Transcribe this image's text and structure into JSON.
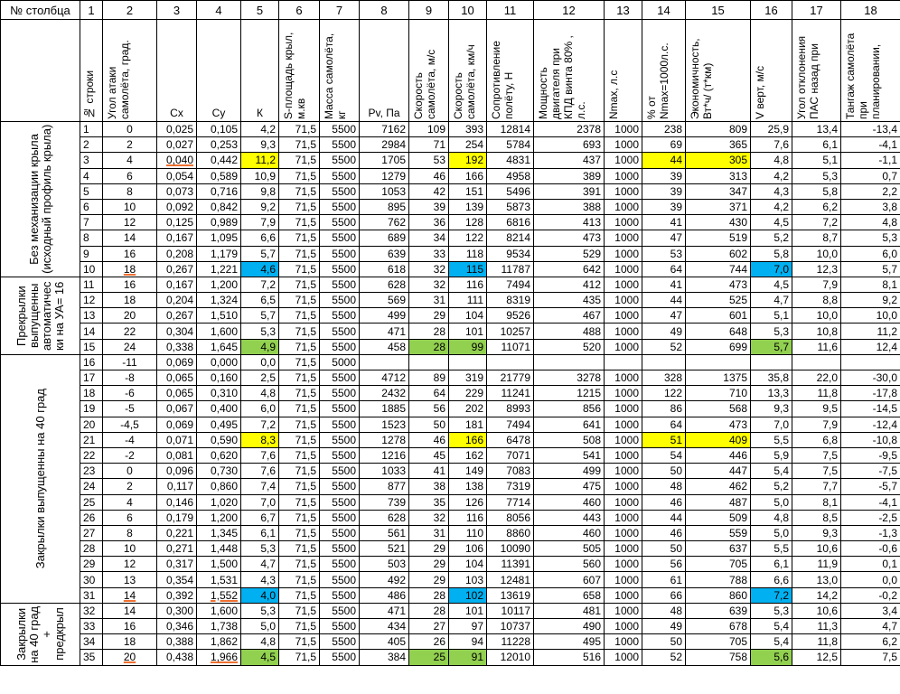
{
  "table": {
    "corner": "№ столбца",
    "column_numbers": [
      1,
      2,
      3,
      4,
      5,
      6,
      7,
      8,
      9,
      10,
      11,
      12,
      13,
      14,
      15,
      16,
      17,
      18
    ],
    "headers": [
      "№ строки",
      "Угол атаки самолёта, град.",
      "Cx",
      "Cy",
      "К",
      "S-площадь крыл, м.кв",
      "Масса самолёта, кг",
      "Pv, Па",
      "Скорость самолёта, м/с",
      "Скорость самолёта, км/ч",
      "Сопротивление полёту, Н",
      "Мощность двигателя при КПД винта 80% , л.с.",
      "Nmax, л.с",
      "% от Nmax=1000л.с.",
      "Экономичность, Вт*ч/ (т*км)",
      "V верт, м/с",
      "Угол отклонения ПАС назад при",
      "Тангаж самолёта при планировании,"
    ],
    "groups": [
      {
        "label": "Без механизации крыла (исходный профиль крыла)",
        "rows": [
          [
            "1",
            "0",
            "0,025",
            "0,105",
            "4,2",
            "71,5",
            "5500",
            "7162",
            "109",
            "393",
            "12814",
            "2378",
            "1000",
            "238",
            "809",
            "25,9",
            "13,4",
            "-13,4"
          ],
          [
            "2",
            "2",
            "0,027",
            "0,253",
            "9,3",
            "71,5",
            "5500",
            "2984",
            "71",
            "254",
            "5784",
            "693",
            "1000",
            "69",
            "365",
            "7,6",
            "6,1",
            "-4,1"
          ],
          [
            "3",
            "4",
            "0,040",
            "0,442",
            "11,2",
            "71,5",
            "5500",
            "1705",
            "53",
            "192",
            "4831",
            "437",
            "1000",
            "44",
            "305",
            "4,8",
            "5,1",
            "-1,1"
          ],
          [
            "4",
            "6",
            "0,054",
            "0,589",
            "10,9",
            "71,5",
            "5500",
            "1279",
            "46",
            "166",
            "4958",
            "389",
            "1000",
            "39",
            "313",
            "4,2",
            "5,3",
            "0,7"
          ],
          [
            "5",
            "8",
            "0,073",
            "0,716",
            "9,8",
            "71,5",
            "5500",
            "1053",
            "42",
            "151",
            "5496",
            "391",
            "1000",
            "39",
            "347",
            "4,3",
            "5,8",
            "2,2"
          ],
          [
            "6",
            "10",
            "0,092",
            "0,842",
            "9,2",
            "71,5",
            "5500",
            "895",
            "39",
            "139",
            "5873",
            "388",
            "1000",
            "39",
            "371",
            "4,2",
            "6,2",
            "3,8"
          ],
          [
            "7",
            "12",
            "0,125",
            "0,989",
            "7,9",
            "71,5",
            "5500",
            "762",
            "36",
            "128",
            "6816",
            "413",
            "1000",
            "41",
            "430",
            "4,5",
            "7,2",
            "4,8"
          ],
          [
            "8",
            "14",
            "0,167",
            "1,095",
            "6,6",
            "71,5",
            "5500",
            "689",
            "34",
            "122",
            "8214",
            "473",
            "1000",
            "47",
            "519",
            "5,2",
            "8,7",
            "5,3"
          ],
          [
            "9",
            "16",
            "0,208",
            "1,179",
            "5,7",
            "71,5",
            "5500",
            "639",
            "33",
            "118",
            "9534",
            "529",
            "1000",
            "53",
            "602",
            "5,8",
            "10,0",
            "6,0"
          ],
          [
            "10",
            "18",
            "0,267",
            "1,221",
            "4,6",
            "71,5",
            "5500",
            "618",
            "32",
            "115",
            "11787",
            "642",
            "1000",
            "64",
            "744",
            "7,0",
            "12,3",
            "5,7"
          ]
        ]
      },
      {
        "label": "Прекрылки выпущенны автоматичес ки на УА= 16",
        "rows": [
          [
            "11",
            "16",
            "0,167",
            "1,200",
            "7,2",
            "71,5",
            "5500",
            "628",
            "32",
            "116",
            "7494",
            "412",
            "1000",
            "41",
            "473",
            "4,5",
            "7,9",
            "8,1"
          ],
          [
            "12",
            "18",
            "0,204",
            "1,324",
            "6,5",
            "71,5",
            "5500",
            "569",
            "31",
            "111",
            "8319",
            "435",
            "1000",
            "44",
            "525",
            "4,7",
            "8,8",
            "9,2"
          ],
          [
            "13",
            "20",
            "0,267",
            "1,510",
            "5,7",
            "71,5",
            "5500",
            "499",
            "29",
            "104",
            "9526",
            "467",
            "1000",
            "47",
            "601",
            "5,1",
            "10,0",
            "10,0"
          ],
          [
            "14",
            "22",
            "0,304",
            "1,600",
            "5,3",
            "71,5",
            "5500",
            "471",
            "28",
            "101",
            "10257",
            "488",
            "1000",
            "49",
            "648",
            "5,3",
            "10,8",
            "11,2"
          ],
          [
            "15",
            "24",
            "0,338",
            "1,645",
            "4,9",
            "71,5",
            "5500",
            "458",
            "28",
            "99",
            "11071",
            "520",
            "1000",
            "52",
            "699",
            "5,7",
            "11,6",
            "12,4"
          ]
        ]
      },
      {
        "label": "Закрылки выпущенны на 40 град",
        "rows": [
          [
            "16",
            "-11",
            "0,069",
            "0,000",
            "0,0",
            "71,5",
            "5000",
            null,
            null,
            null,
            null,
            null,
            null,
            null,
            null,
            null,
            null,
            null
          ],
          [
            "17",
            "-8",
            "0,065",
            "0,160",
            "2,5",
            "71,5",
            "5500",
            "4712",
            "89",
            "319",
            "21779",
            "3278",
            "1000",
            "328",
            "1375",
            "35,8",
            "22,0",
            "-30,0"
          ],
          [
            "18",
            "-6",
            "0,065",
            "0,310",
            "4,8",
            "71,5",
            "5500",
            "2432",
            "64",
            "229",
            "11241",
            "1215",
            "1000",
            "122",
            "710",
            "13,3",
            "11,8",
            "-17,8"
          ],
          [
            "19",
            "-5",
            "0,067",
            "0,400",
            "6,0",
            "71,5",
            "5500",
            "1885",
            "56",
            "202",
            "8993",
            "856",
            "1000",
            "86",
            "568",
            "9,3",
            "9,5",
            "-14,5"
          ],
          [
            "20",
            "-4,5",
            "0,069",
            "0,495",
            "7,2",
            "71,5",
            "5500",
            "1523",
            "50",
            "181",
            "7494",
            "641",
            "1000",
            "64",
            "473",
            "7,0",
            "7,9",
            "-12,4"
          ],
          [
            "21",
            "-4",
            "0,071",
            "0,590",
            "8,3",
            "71,5",
            "5500",
            "1278",
            "46",
            "166",
            "6478",
            "508",
            "1000",
            "51",
            "409",
            "5,5",
            "6,8",
            "-10,8"
          ],
          [
            "22",
            "-2",
            "0,081",
            "0,620",
            "7,6",
            "71,5",
            "5500",
            "1216",
            "45",
            "162",
            "7071",
            "541",
            "1000",
            "54",
            "446",
            "5,9",
            "7,5",
            "-9,5"
          ],
          [
            "23",
            "0",
            "0,096",
            "0,730",
            "7,6",
            "71,5",
            "5500",
            "1033",
            "41",
            "149",
            "7083",
            "499",
            "1000",
            "50",
            "447",
            "5,4",
            "7,5",
            "-7,5"
          ],
          [
            "24",
            "2",
            "0,117",
            "0,860",
            "7,4",
            "71,5",
            "5500",
            "877",
            "38",
            "138",
            "7319",
            "475",
            "1000",
            "48",
            "462",
            "5,2",
            "7,7",
            "-5,7"
          ],
          [
            "25",
            "4",
            "0,146",
            "1,020",
            "7,0",
            "71,5",
            "5500",
            "739",
            "35",
            "126",
            "7714",
            "460",
            "1000",
            "46",
            "487",
            "5,0",
            "8,1",
            "-4,1"
          ],
          [
            "26",
            "6",
            "0,179",
            "1,200",
            "6,7",
            "71,5",
            "5500",
            "628",
            "32",
            "116",
            "8056",
            "443",
            "1000",
            "44",
            "509",
            "4,8",
            "8,5",
            "-2,5"
          ],
          [
            "27",
            "8",
            "0,221",
            "1,345",
            "6,1",
            "71,5",
            "5500",
            "561",
            "31",
            "110",
            "8860",
            "460",
            "1000",
            "46",
            "559",
            "5,0",
            "9,3",
            "-1,3"
          ],
          [
            "28",
            "10",
            "0,271",
            "1,448",
            "5,3",
            "71,5",
            "5500",
            "521",
            "29",
            "106",
            "10090",
            "505",
            "1000",
            "50",
            "637",
            "5,5",
            "10,6",
            "-0,6"
          ],
          [
            "29",
            "12",
            "0,317",
            "1,500",
            "4,7",
            "71,5",
            "5500",
            "503",
            "29",
            "104",
            "11391",
            "560",
            "1000",
            "56",
            "705",
            "6,1",
            "11,9",
            "0,1"
          ],
          [
            "30",
            "13",
            "0,354",
            "1,531",
            "4,3",
            "71,5",
            "5500",
            "492",
            "29",
            "103",
            "12481",
            "607",
            "1000",
            "61",
            "788",
            "6,6",
            "13,0",
            "0,0"
          ],
          [
            "31",
            "14",
            "0,392",
            "1,552",
            "4,0",
            "71,5",
            "5500",
            "486",
            "28",
            "102",
            "13619",
            "658",
            "1000",
            "66",
            "860",
            "7,2",
            "14,2",
            "-0,2"
          ]
        ]
      },
      {
        "label": "Закрылки на 40 град + предкрыл",
        "rows": [
          [
            "32",
            "14",
            "0,300",
            "1,600",
            "5,3",
            "71,5",
            "5500",
            "471",
            "28",
            "101",
            "10117",
            "481",
            "1000",
            "48",
            "639",
            "5,3",
            "10,6",
            "3,4"
          ],
          [
            "33",
            "16",
            "0,346",
            "1,738",
            "5,0",
            "71,5",
            "5500",
            "434",
            "27",
            "97",
            "10737",
            "490",
            "1000",
            "49",
            "678",
            "5,4",
            "11,3",
            "4,7"
          ],
          [
            "34",
            "18",
            "0,388",
            "1,862",
            "4,8",
            "71,5",
            "5500",
            "405",
            "26",
            "94",
            "11228",
            "495",
            "1000",
            "50",
            "705",
            "5,4",
            "11,8",
            "6,2"
          ],
          [
            "35",
            "20",
            "0,438",
            "1,966",
            "4,5",
            "71,5",
            "5500",
            "384",
            "25",
            "91",
            "12010",
            "516",
            "1000",
            "52",
            "758",
            "5,6",
            "12,5",
            "7,5"
          ]
        ]
      }
    ]
  }
}
